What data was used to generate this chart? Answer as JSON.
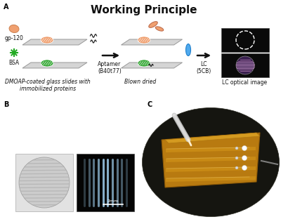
{
  "title": "Working Principle",
  "title_fontsize": 11,
  "label_A": "A",
  "label_B": "B",
  "label_C": "C",
  "gp120_label": "gp-120",
  "bsa_label": "BSA",
  "aptamer_label": "Aptamer\n(B40t77)",
  "lc_label": "LC\n(5CB)",
  "blown_label": "Blown dried",
  "dmoap_label": "DMOAP-coated glass slides with\nimmobilized proteins",
  "lc_optical_label": "LC optical image",
  "scale_bar_label": "2mm",
  "gp120_color": "#f0a070",
  "bsa_color": "#3aaa3a",
  "slide_color": "#d5d5d5",
  "slide_edge_color": "#aaaaaa",
  "lc_lens_color": "#50aaee",
  "arrow_color": "#111111",
  "font_color": "#111111",
  "label_fontsize": 6,
  "small_fontsize": 5.5
}
